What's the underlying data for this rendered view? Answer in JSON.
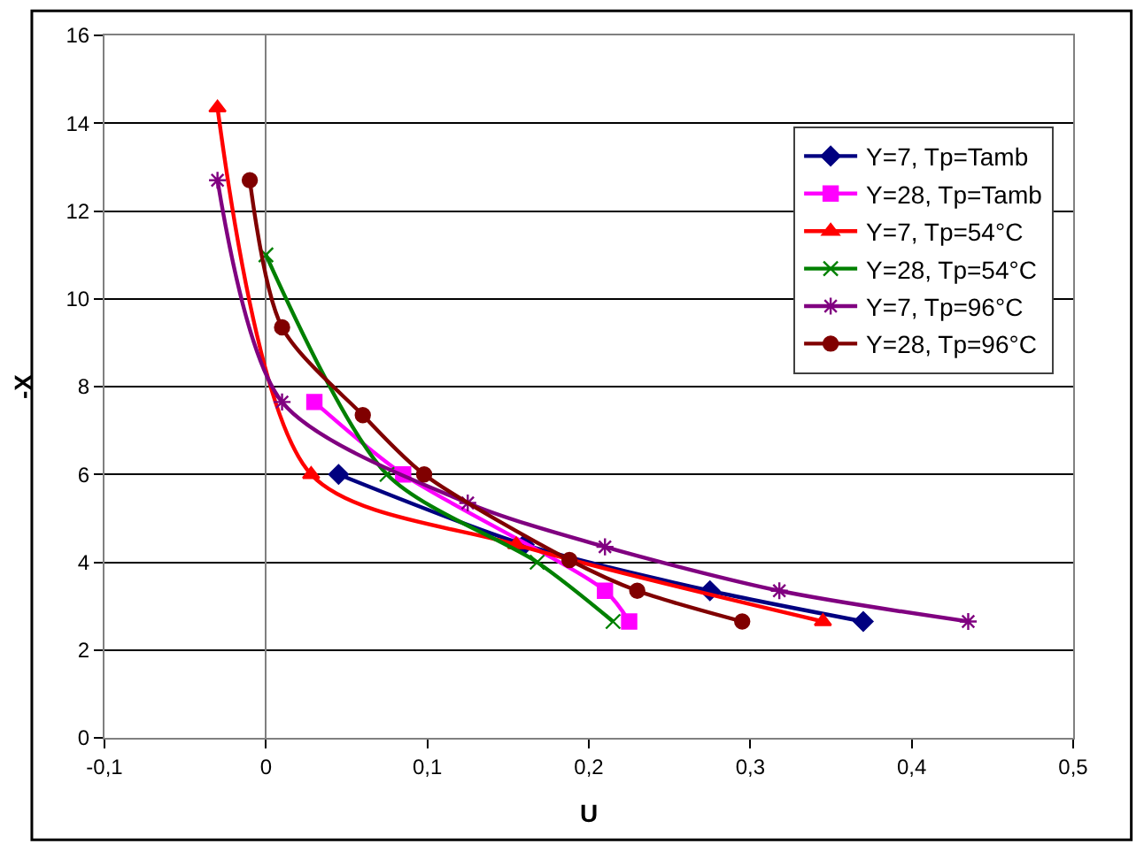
{
  "chart_data": {
    "type": "line",
    "xlabel": "U",
    "ylabel": "-X",
    "xlim": [
      -0.1,
      0.5
    ],
    "xticks": [
      {
        "value": -0.1,
        "label": "-0,1"
      },
      {
        "value": 0,
        "label": "0"
      },
      {
        "value": 0.1,
        "label": "0,1"
      },
      {
        "value": 0.2,
        "label": "0,2"
      },
      {
        "value": 0.3,
        "label": "0,3"
      },
      {
        "value": 0.4,
        "label": "0,4"
      },
      {
        "value": 0.5,
        "label": "0,5"
      }
    ],
    "ylim": [
      0,
      16
    ],
    "yticks": [
      0,
      2,
      4,
      6,
      8,
      10,
      12,
      14,
      16
    ],
    "grid": "y",
    "legend": "top right",
    "series": [
      {
        "name": "Y=7, Tp=Tamb",
        "color": "#000080",
        "marker": "diamond",
        "x": [
          0.045,
          0.16,
          0.275,
          0.37
        ],
        "values": [
          6,
          4.4,
          3.35,
          2.65
        ]
      },
      {
        "name": "Y=28, Tp=Tamb",
        "color": "#ff00ff",
        "marker": "square",
        "x": [
          0.03,
          0.085,
          0.21,
          0.225
        ],
        "values": [
          7.65,
          6,
          3.35,
          2.65
        ]
      },
      {
        "name": "Y=7, Tp=54°C",
        "color": "#ff0000",
        "marker": "triangle",
        "x": [
          -0.03,
          0.028,
          0.155,
          0.345
        ],
        "values": [
          14.35,
          6,
          4.4,
          2.65
        ]
      },
      {
        "name": "Y=28, Tp=54°C",
        "color": "#008000",
        "marker": "cross",
        "x": [
          0,
          0.075,
          0.168,
          0.215
        ],
        "values": [
          11,
          6,
          4.0,
          2.65
        ]
      },
      {
        "name": "Y=7, Tp=96°C",
        "color": "#800080",
        "marker": "cross",
        "x": [
          -0.03,
          0.01,
          0.125,
          0.21,
          0.318,
          0.435
        ],
        "values": [
          12.7,
          7.65,
          5.35,
          4.35,
          3.35,
          2.65
        ]
      },
      {
        "name": "Y=28, Tp=96°C",
        "color": "#800000",
        "marker": "circle",
        "x": [
          -0.01,
          0.01,
          0.06,
          0.098,
          0.188,
          0.23,
          0.295
        ],
        "values": [
          12.7,
          9.35,
          7.35,
          6,
          4.05,
          3.35,
          2.65
        ]
      }
    ]
  }
}
